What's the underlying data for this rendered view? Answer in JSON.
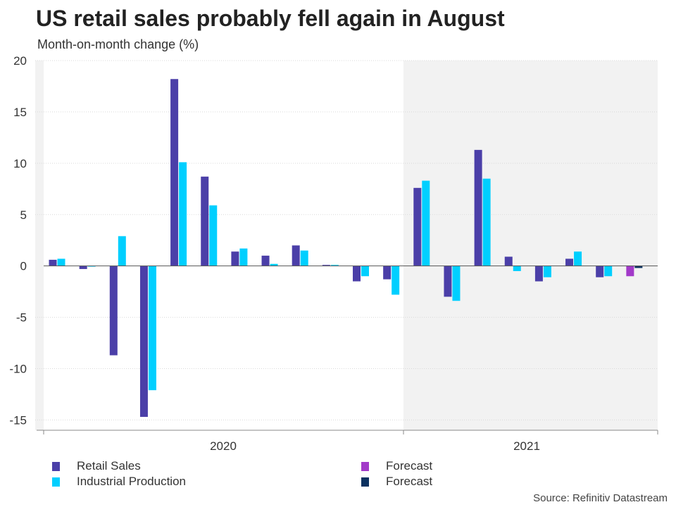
{
  "title": "US retail sales probably fell again in August",
  "subtitle": "Month-on-month change (%)",
  "source": "Source: Refinitiv Datastream",
  "colors": {
    "retail": "#4b3fa8",
    "industrial": "#00cfff",
    "forecast_retail": "#a23ac9",
    "forecast_industrial": "#0b3160",
    "shade": "#f2f2f2"
  },
  "legend": [
    {
      "label": "Retail Sales",
      "color": "#4b3fa8"
    },
    {
      "label": "Industrial Production",
      "color": "#00cfff"
    },
    {
      "label": "Forecast",
      "color": "#a23ac9"
    },
    {
      "label": "Forecast",
      "color": "#0b3160"
    }
  ],
  "chart_data": {
    "type": "bar",
    "ylim": [
      -16,
      20
    ],
    "yticks": [
      20,
      15,
      10,
      5,
      0,
      -5,
      -10,
      -15
    ],
    "x_group_labels": [
      "2020",
      "2021"
    ],
    "shaded_region": "2021",
    "grid": true,
    "legend_position": "bottom",
    "series": [
      {
        "name": "Retail Sales",
        "values": [
          0.6,
          -0.3,
          -8.7,
          -14.7,
          18.2,
          8.7,
          1.4,
          1.0,
          2.0,
          0.1,
          -1.5,
          -1.3,
          7.6,
          -3.0,
          11.3,
          0.9,
          -1.5,
          0.7,
          -1.1,
          null
        ]
      },
      {
        "name": "Industrial Production",
        "values": [
          0.7,
          0.0,
          2.9,
          -12.1,
          10.1,
          5.9,
          1.7,
          0.2,
          1.5,
          0.1,
          -1.0,
          -2.8,
          8.3,
          -3.4,
          8.5,
          -0.5,
          -1.1,
          1.4,
          -1.0,
          null
        ]
      },
      {
        "name": "Forecast",
        "values": [
          null,
          null,
          null,
          null,
          null,
          null,
          null,
          null,
          null,
          null,
          null,
          null,
          null,
          null,
          null,
          null,
          null,
          null,
          null,
          -1.0
        ]
      },
      {
        "name": "Forecast",
        "values": [
          null,
          null,
          null,
          null,
          null,
          null,
          null,
          null,
          null,
          null,
          null,
          null,
          null,
          null,
          null,
          null,
          null,
          null,
          null,
          -0.2
        ]
      }
    ]
  }
}
